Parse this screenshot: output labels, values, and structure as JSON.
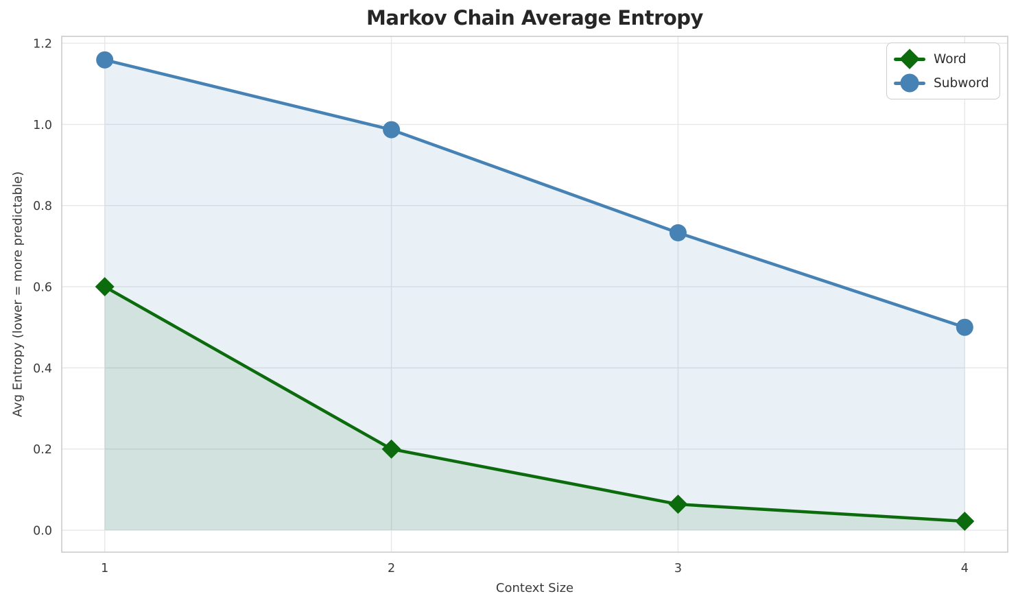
{
  "chart_data": {
    "type": "line",
    "title": "Markov Chain Average Entropy",
    "xlabel": "Context Size",
    "ylabel": "Avg Entropy (lower = more predictable)",
    "x": [
      1,
      2,
      3,
      4
    ],
    "xtick_labels": [
      "1",
      "2",
      "3",
      "4"
    ],
    "yticks": [
      0.0,
      0.2,
      0.4,
      0.6,
      0.8,
      1.0,
      1.2
    ],
    "ytick_labels": [
      "0.0",
      "0.2",
      "0.4",
      "0.6",
      "0.8",
      "1.0",
      "1.2"
    ],
    "xlim": [
      0.85,
      4.15
    ],
    "ylim": [
      -0.054,
      1.217
    ],
    "grid": true,
    "legend_position": "upper right",
    "fill_to_zero": true,
    "series": [
      {
        "name": "Word",
        "marker": "diamond",
        "color": "#0c6b0c",
        "fill_alpha": 0.1,
        "values": [
          0.6,
          0.2,
          0.064,
          0.022
        ]
      },
      {
        "name": "Subword",
        "marker": "circle",
        "color": "#4682b4",
        "fill_alpha": 0.12,
        "values": [
          1.159,
          0.987,
          0.733,
          0.5
        ]
      }
    ],
    "colors": {
      "grid": "#e7e7ea",
      "spine": "#cbcbcf",
      "tick_label": "#3a3a3a",
      "title": "#262626"
    }
  }
}
